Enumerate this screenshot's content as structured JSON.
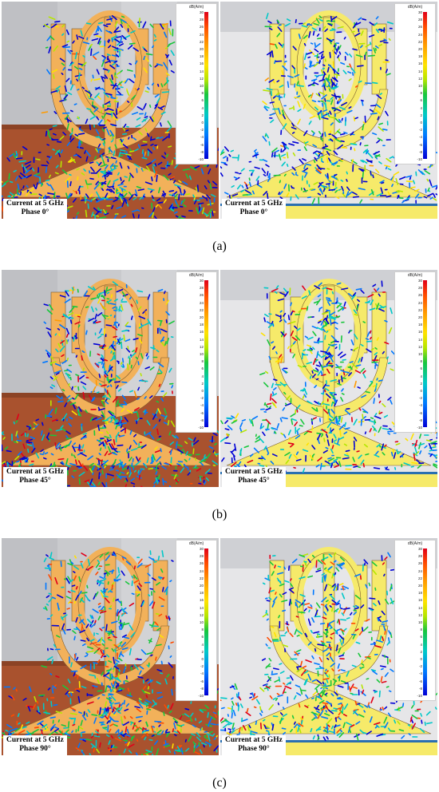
{
  "rows": [
    {
      "caption": "(a)",
      "left": {
        "label_line1": "Current at 5 GHz",
        "label_line2": "Phase 0°"
      },
      "right": {
        "label_line1": "Current at 5 GHz",
        "label_line2": "Phase 0°"
      }
    },
    {
      "caption": "(b)",
      "left": {
        "label_line1": "Current at 5 GHz",
        "label_line2": "Phase 45°"
      },
      "right": {
        "label_line1": "Current at 5 GHz",
        "label_line2": "Phase 45°"
      }
    },
    {
      "caption": "(c)",
      "left": {
        "label_line1": "Current at 5 GHz",
        "label_line2": "Phase 90°"
      },
      "right": {
        "label_line1": "Current at 5 GHz",
        "label_line2": "Phase 90°"
      }
    }
  ],
  "colorbar": {
    "unit": "dB(A/m)",
    "ticks": [
      "30",
      "28",
      "26",
      "24",
      "22",
      "20",
      "18",
      "16",
      "14",
      "12",
      "10",
      "8",
      "6",
      "4",
      "2",
      "0",
      "-2",
      "-4",
      "-6",
      "-8",
      "-10"
    ],
    "colors": [
      "#e0001a",
      "#ff4b00",
      "#ff9a00",
      "#ffe200",
      "#b6e600",
      "#19c63c",
      "#00c8c8",
      "#0078ff",
      "#0000d6"
    ]
  },
  "colors": {
    "antenna_copper": "#f2b15a",
    "antenna_yellow": "#f6ea6a",
    "ground_brown": "#a9522e",
    "background_gray": "#d9dadd"
  }
}
